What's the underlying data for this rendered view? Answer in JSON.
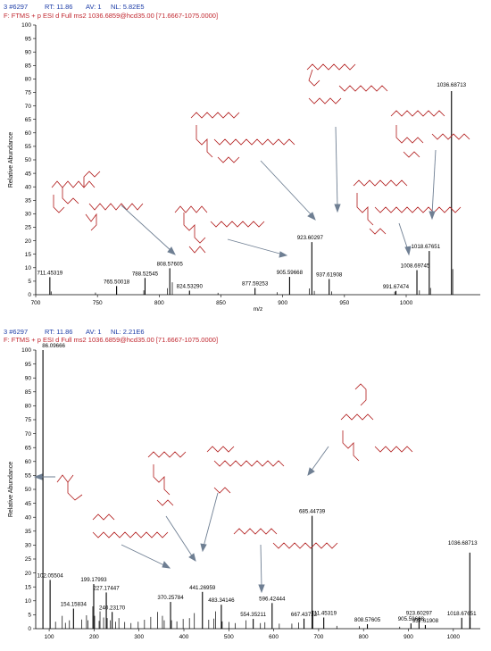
{
  "panels": [
    {
      "header_line1": [
        "3 #6297",
        "RT: 11.86",
        "AV: 1",
        "NL: 5.82E5"
      ],
      "header_line2": "F:  FTMS + p ESI d Full ms2 1036.6859@hcd35.00 [71.6667-1075.0000]"
    },
    {
      "header_line1": [
        "3 #6297",
        "RT: 11.86",
        "AV: 1",
        "NL: 2.21E6"
      ],
      "header_line2": "F:  FTMS + p ESI d Full ms2 1036.6859@hcd35.00 [71.6667-1075.0000]"
    }
  ],
  "colors": {
    "header_blue": "#1f3fa8",
    "header_red": "#c0262e",
    "peak": "#000000",
    "arrow": "#6f7f93",
    "leader": "#3aa55a",
    "structure": "#b01818"
  },
  "chart_data": [
    {
      "type": "bar",
      "xlabel": "m/z",
      "ylabel": "Relative Abundance",
      "xlim": [
        700,
        1060
      ],
      "ylim": [
        0,
        100
      ],
      "xticks": [
        700,
        750,
        800,
        850,
        900,
        950,
        1000
      ],
      "yticks": [
        0,
        5,
        10,
        15,
        20,
        25,
        30,
        35,
        40,
        45,
        50,
        55,
        60,
        65,
        70,
        75,
        80,
        85,
        90,
        95,
        100
      ],
      "peaks": [
        {
          "mz": 711.45319,
          "intensity": 6.5,
          "label": "711.45319"
        },
        {
          "mz": 765.50018,
          "intensity": 3.2,
          "label": "765.50018"
        },
        {
          "mz": 788.52545,
          "intensity": 6.2,
          "label": "788.52545"
        },
        {
          "mz": 808.57605,
          "intensity": 9.8,
          "label": "808.57605"
        },
        {
          "mz": 824.5329,
          "intensity": 1.5,
          "label": "824.53290"
        },
        {
          "mz": 877.59253,
          "intensity": 2.5,
          "label": "877.59253"
        },
        {
          "mz": 905.59668,
          "intensity": 6.6,
          "label": "905.59668"
        },
        {
          "mz": 923.60297,
          "intensity": 19.5,
          "label": "923.60297"
        },
        {
          "mz": 937.61908,
          "intensity": 5.8,
          "label": "937.61908"
        },
        {
          "mz": 991.67474,
          "intensity": 1.4,
          "label": "991.67474"
        },
        {
          "mz": 1008.69745,
          "intensity": 9.1,
          "label": "1008.69745"
        },
        {
          "mz": 1018.67651,
          "intensity": 16.2,
          "label": "1018.67651"
        },
        {
          "mz": 1036.68713,
          "intensity": 75.5,
          "label": "1036.68713"
        }
      ],
      "minor_peaks": [
        {
          "mz": 712.5,
          "intensity": 1.2
        },
        {
          "mz": 748.4,
          "intensity": 0.8
        },
        {
          "mz": 787.5,
          "intensity": 1.6
        },
        {
          "mz": 806.6,
          "intensity": 2.4
        },
        {
          "mz": 810.6,
          "intensity": 4.6
        },
        {
          "mz": 847.6,
          "intensity": 0.7
        },
        {
          "mz": 895.6,
          "intensity": 0.9
        },
        {
          "mz": 921.6,
          "intensity": 2.3
        },
        {
          "mz": 925.6,
          "intensity": 1.4
        },
        {
          "mz": 939.6,
          "intensity": 1.2
        },
        {
          "mz": 990.7,
          "intensity": 1.1
        },
        {
          "mz": 1010.7,
          "intensity": 1.6
        },
        {
          "mz": 1019.7,
          "intensity": 2.5
        },
        {
          "mz": 1037.7,
          "intensity": 9.5
        }
      ]
    },
    {
      "type": "bar",
      "xlabel": "",
      "ylabel": "Relative Abundance",
      "xlim": [
        70,
        1060
      ],
      "ylim": [
        0,
        100
      ],
      "xticks": [
        100,
        200,
        300,
        400,
        500,
        600,
        700,
        800,
        900,
        1000
      ],
      "yticks": [
        0,
        5,
        10,
        15,
        20,
        25,
        30,
        35,
        40,
        45,
        50,
        55,
        60,
        65,
        70,
        75,
        80,
        85,
        90,
        95,
        100
      ],
      "peaks": [
        {
          "mz": 86.09666,
          "intensity": 100,
          "label": "86.09666"
        },
        {
          "mz": 102.05504,
          "intensity": 17.5,
          "label": "102.05504"
        },
        {
          "mz": 154.15834,
          "intensity": 7.2,
          "label": "154.15834"
        },
        {
          "mz": 199.17993,
          "intensity": 16.0,
          "label": "199.17993"
        },
        {
          "mz": 227.17447,
          "intensity": 13.0,
          "label": "227.17447"
        },
        {
          "mz": 240.2317,
          "intensity": 6.0,
          "label": "240.23170"
        },
        {
          "mz": 370.25784,
          "intensity": 9.6,
          "label": "370.25784"
        },
        {
          "mz": 441.26959,
          "intensity": 13.2,
          "label": "441.26959"
        },
        {
          "mz": 483.34146,
          "intensity": 8.6,
          "label": "483.34146"
        },
        {
          "mz": 554.35211,
          "intensity": 3.5,
          "label": "554.35211"
        },
        {
          "mz": 596.42444,
          "intensity": 9.2,
          "label": "596.42444"
        },
        {
          "mz": 667.43732,
          "intensity": 3.6,
          "label": "667.43732"
        },
        {
          "mz": 685.44739,
          "intensity": 40.5,
          "label": "685.44739"
        },
        {
          "mz": 711.45319,
          "intensity": 4.0,
          "label": "711.45319"
        },
        {
          "mz": 808.57605,
          "intensity": 1.6,
          "label": "808.57605"
        },
        {
          "mz": 905.59668,
          "intensity": 1.9,
          "label": "905.59668"
        },
        {
          "mz": 923.60297,
          "intensity": 4.0,
          "label": "923.60297"
        },
        {
          "mz": 937.61908,
          "intensity": 1.3,
          "label": "937.61908"
        },
        {
          "mz": 1018.67651,
          "intensity": 3.9,
          "label": "1018.67651"
        },
        {
          "mz": 1036.68713,
          "intensity": 27.3,
          "label": "1036.68713"
        }
      ],
      "minor_peaks": [
        {
          "mz": 114.1,
          "intensity": 2.5
        },
        {
          "mz": 129.1,
          "intensity": 4.6
        },
        {
          "mz": 136.1,
          "intensity": 2.1
        },
        {
          "mz": 145.1,
          "intensity": 3.0
        },
        {
          "mz": 172.1,
          "intensity": 3.3
        },
        {
          "mz": 183.1,
          "intensity": 4.8
        },
        {
          "mz": 186.1,
          "intensity": 3.0
        },
        {
          "mz": 197.1,
          "intensity": 8.0
        },
        {
          "mz": 201.2,
          "intensity": 4.6
        },
        {
          "mz": 211.2,
          "intensity": 2.8
        },
        {
          "mz": 213.2,
          "intensity": 6.2
        },
        {
          "mz": 221.2,
          "intensity": 4.0
        },
        {
          "mz": 229.2,
          "intensity": 3.8
        },
        {
          "mz": 236.2,
          "intensity": 3.0
        },
        {
          "mz": 248.2,
          "intensity": 2.5
        },
        {
          "mz": 255.2,
          "intensity": 3.8
        },
        {
          "mz": 268.2,
          "intensity": 2.4
        },
        {
          "mz": 282.2,
          "intensity": 2.0
        },
        {
          "mz": 298.2,
          "intensity": 2.5
        },
        {
          "mz": 312.2,
          "intensity": 3.2
        },
        {
          "mz": 326.2,
          "intensity": 4.2
        },
        {
          "mz": 341.2,
          "intensity": 6.0
        },
        {
          "mz": 352.2,
          "intensity": 4.6
        },
        {
          "mz": 356.2,
          "intensity": 3.0
        },
        {
          "mz": 372.3,
          "intensity": 3.0
        },
        {
          "mz": 384.3,
          "intensity": 2.6
        },
        {
          "mz": 398.3,
          "intensity": 3.5
        },
        {
          "mz": 412.3,
          "intensity": 3.8
        },
        {
          "mz": 423.3,
          "intensity": 5.6
        },
        {
          "mz": 455.3,
          "intensity": 3.2
        },
        {
          "mz": 466.3,
          "intensity": 3.6
        },
        {
          "mz": 470.3,
          "intensity": 6.2
        },
        {
          "mz": 485.3,
          "intensity": 2.6
        },
        {
          "mz": 500.3,
          "intensity": 2.4
        },
        {
          "mz": 514.3,
          "intensity": 2.0
        },
        {
          "mz": 538.3,
          "intensity": 3.0
        },
        {
          "mz": 570.4,
          "intensity": 2.0
        },
        {
          "mz": 580.4,
          "intensity": 2.3
        },
        {
          "mz": 612.4,
          "intensity": 1.8
        },
        {
          "mz": 640.4,
          "intensity": 1.8
        },
        {
          "mz": 655.4,
          "intensity": 2.2
        },
        {
          "mz": 687.4,
          "intensity": 6.5
        },
        {
          "mz": 740.5,
          "intensity": 1.0
        },
        {
          "mz": 790.5,
          "intensity": 0.9
        },
        {
          "mz": 880.6,
          "intensity": 0.7
        },
        {
          "mz": 1037.7,
          "intensity": 4.0
        }
      ]
    }
  ]
}
